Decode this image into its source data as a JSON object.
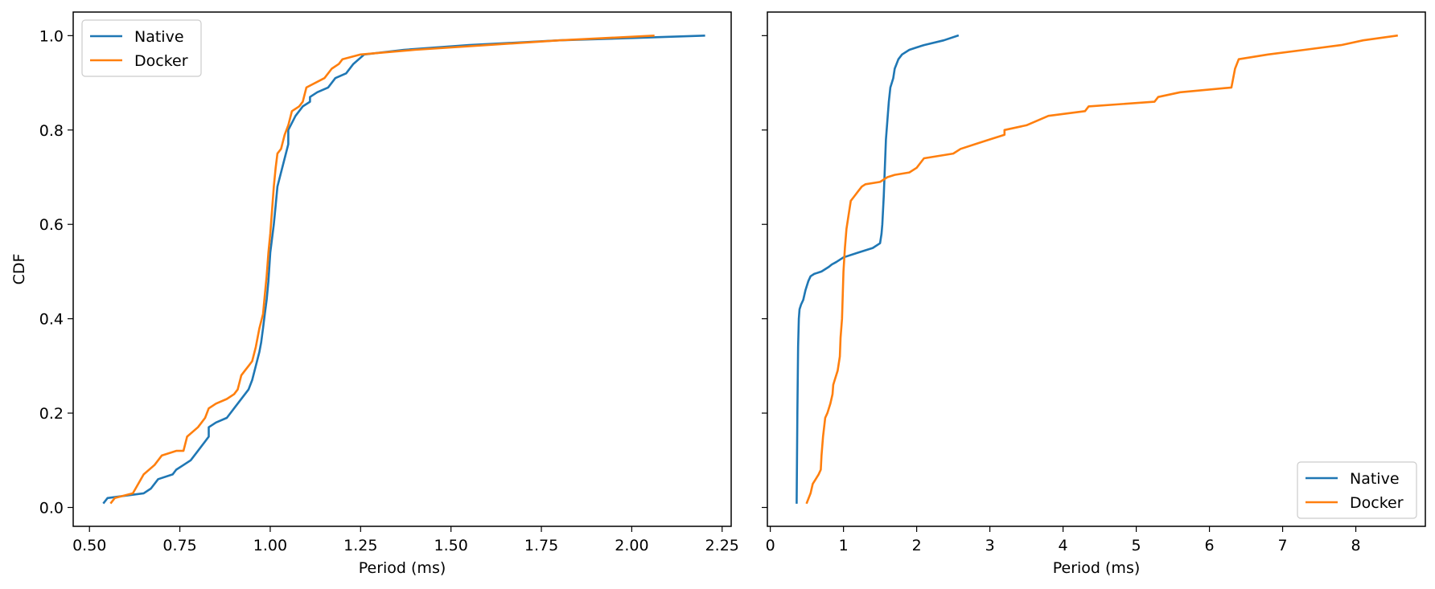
{
  "chart_data": [
    {
      "type": "line",
      "title": "",
      "xlabel": "Period (ms)",
      "ylabel": "CDF",
      "xlim": [
        0.455,
        2.275
      ],
      "ylim": [
        -0.04,
        1.05
      ],
      "xticks": [
        0.5,
        0.75,
        1.0,
        1.25,
        1.5,
        1.75,
        2.0,
        2.25
      ],
      "xtick_labels": [
        "0.50",
        "0.75",
        "1.00",
        "1.25",
        "1.50",
        "1.75",
        "2.00",
        "2.25"
      ],
      "yticks": [
        0.0,
        0.2,
        0.4,
        0.6,
        0.8,
        1.0
      ],
      "ytick_labels": [
        "0.0",
        "0.2",
        "0.4",
        "0.6",
        "0.8",
        "1.0"
      ],
      "legend": "top-left",
      "grid": false,
      "series": [
        {
          "name": "Native",
          "color": "#1f77b4",
          "x": [
            0.54,
            0.55,
            0.6,
            0.65,
            0.67,
            0.69,
            0.73,
            0.74,
            0.76,
            0.78,
            0.8,
            0.83,
            0.83,
            0.85,
            0.88,
            0.9,
            0.91,
            0.93,
            0.94,
            0.95,
            0.96,
            0.97,
            0.975,
            0.98,
            0.985,
            0.99,
            0.995,
            1.0,
            1.005,
            1.01,
            1.015,
            1.02,
            1.03,
            1.04,
            1.05,
            1.05,
            1.07,
            1.09,
            1.11,
            1.11,
            1.13,
            1.16,
            1.18,
            1.21,
            1.23,
            1.26,
            1.37,
            1.55,
            1.8,
            2.0,
            2.2
          ],
          "y": [
            0.01,
            0.02,
            0.025,
            0.03,
            0.04,
            0.06,
            0.07,
            0.08,
            0.09,
            0.1,
            0.12,
            0.15,
            0.17,
            0.18,
            0.19,
            0.21,
            0.22,
            0.24,
            0.25,
            0.27,
            0.3,
            0.33,
            0.35,
            0.38,
            0.41,
            0.44,
            0.48,
            0.54,
            0.57,
            0.6,
            0.64,
            0.68,
            0.71,
            0.74,
            0.77,
            0.8,
            0.83,
            0.85,
            0.86,
            0.87,
            0.88,
            0.89,
            0.91,
            0.92,
            0.94,
            0.96,
            0.97,
            0.98,
            0.99,
            0.995,
            1.0
          ],
          "inline_label": ""
        },
        {
          "name": "Docker",
          "color": "#ff7f0e",
          "x": [
            0.56,
            0.57,
            0.62,
            0.65,
            0.68,
            0.7,
            0.74,
            0.76,
            0.77,
            0.8,
            0.81,
            0.82,
            0.83,
            0.85,
            0.88,
            0.9,
            0.91,
            0.92,
            0.93,
            0.94,
            0.95,
            0.96,
            0.97,
            0.98,
            0.985,
            0.99,
            0.995,
            1.0,
            1.005,
            1.01,
            1.015,
            1.02,
            1.03,
            1.04,
            1.05,
            1.06,
            1.08,
            1.09,
            1.1,
            1.15,
            1.17,
            1.19,
            1.2,
            1.25,
            1.4,
            1.6,
            1.8,
            2.06
          ],
          "y": [
            0.01,
            0.02,
            0.03,
            0.07,
            0.09,
            0.11,
            0.12,
            0.12,
            0.15,
            0.17,
            0.18,
            0.19,
            0.21,
            0.22,
            0.23,
            0.24,
            0.25,
            0.28,
            0.29,
            0.3,
            0.31,
            0.34,
            0.38,
            0.41,
            0.45,
            0.49,
            0.54,
            0.58,
            0.63,
            0.68,
            0.72,
            0.75,
            0.76,
            0.79,
            0.81,
            0.84,
            0.85,
            0.86,
            0.89,
            0.91,
            0.93,
            0.94,
            0.95,
            0.96,
            0.97,
            0.98,
            0.99,
            1.0
          ]
        }
      ]
    },
    {
      "type": "line",
      "title": "",
      "xlabel": "Period (ms)",
      "ylabel": "",
      "xlim": [
        -0.04,
        8.95
      ],
      "ylim": [
        -0.04,
        1.05
      ],
      "xticks": [
        0,
        1,
        2,
        3,
        4,
        5,
        6,
        7,
        8
      ],
      "xtick_labels": [
        "0",
        "1",
        "2",
        "3",
        "4",
        "5",
        "6",
        "7",
        "8"
      ],
      "yticks": [
        0.0,
        0.2,
        0.4,
        0.6,
        0.8,
        1.0
      ],
      "ytick_labels": [
        "",
        "",
        "",
        "",
        "",
        ""
      ],
      "legend": "bottom-right",
      "grid": false,
      "series": [
        {
          "name": "Native",
          "color": "#1f77b4",
          "x": [
            0.36,
            0.37,
            0.38,
            0.39,
            0.4,
            0.42,
            0.45,
            0.48,
            0.5,
            0.52,
            0.55,
            0.6,
            0.7,
            0.8,
            0.84,
            0.9,
            1.0,
            1.2,
            1.3,
            1.4,
            1.5,
            1.52,
            1.53,
            1.54,
            1.55,
            1.56,
            1.57,
            1.58,
            1.6,
            1.62,
            1.64,
            1.66,
            1.68,
            1.7,
            1.75,
            1.8,
            1.9,
            2.0,
            2.1,
            2.37,
            2.56
          ],
          "y": [
            0.01,
            0.2,
            0.34,
            0.4,
            0.42,
            0.43,
            0.44,
            0.46,
            0.47,
            0.48,
            0.49,
            0.495,
            0.5,
            0.51,
            0.515,
            0.52,
            0.53,
            0.54,
            0.545,
            0.55,
            0.56,
            0.58,
            0.6,
            0.63,
            0.66,
            0.7,
            0.74,
            0.78,
            0.82,
            0.86,
            0.89,
            0.9,
            0.91,
            0.93,
            0.95,
            0.96,
            0.97,
            0.975,
            0.98,
            0.99,
            1.0
          ]
        },
        {
          "name": "Docker",
          "color": "#ff7f0e",
          "x": [
            0.5,
            0.55,
            0.58,
            0.62,
            0.66,
            0.69,
            0.7,
            0.72,
            0.75,
            0.78,
            0.82,
            0.85,
            0.86,
            0.88,
            0.92,
            0.95,
            0.96,
            0.98,
            0.99,
            1.0,
            1.02,
            1.04,
            1.06,
            1.08,
            1.1,
            1.15,
            1.2,
            1.25,
            1.3,
            1.5,
            1.6,
            1.7,
            1.9,
            2.0,
            2.1,
            2.5,
            2.6,
            2.8,
            3.0,
            3.2,
            3.2,
            3.5,
            3.8,
            4.3,
            4.35,
            5.25,
            5.3,
            5.6,
            6.3,
            6.35,
            6.4,
            6.8,
            7.3,
            7.8,
            8.1,
            8.56
          ],
          "y": [
            0.01,
            0.03,
            0.05,
            0.06,
            0.07,
            0.08,
            0.11,
            0.15,
            0.19,
            0.2,
            0.22,
            0.24,
            0.26,
            0.27,
            0.29,
            0.32,
            0.36,
            0.4,
            0.45,
            0.5,
            0.55,
            0.59,
            0.61,
            0.63,
            0.65,
            0.66,
            0.67,
            0.68,
            0.685,
            0.69,
            0.7,
            0.705,
            0.71,
            0.72,
            0.74,
            0.75,
            0.76,
            0.77,
            0.78,
            0.79,
            0.8,
            0.81,
            0.83,
            0.84,
            0.85,
            0.86,
            0.87,
            0.88,
            0.89,
            0.93,
            0.95,
            0.96,
            0.97,
            0.98,
            0.99,
            1.0
          ]
        }
      ]
    }
  ]
}
